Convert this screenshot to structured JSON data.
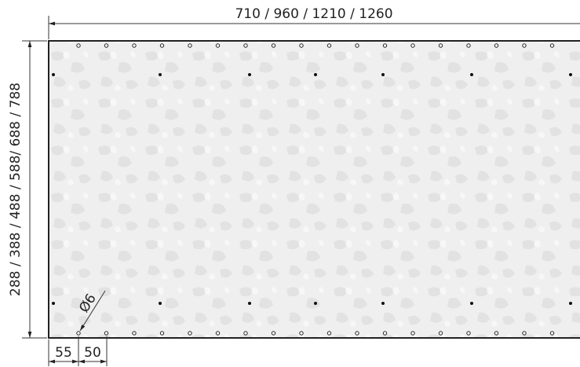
{
  "dimensions": {
    "width": "710 / 960 / 1210 / 1260",
    "height": "288 / 388 / 488 / 588/ 688 / 788",
    "edge_offset": "55",
    "hole_spacing": "50",
    "hole_diameter": "Ø6"
  }
}
